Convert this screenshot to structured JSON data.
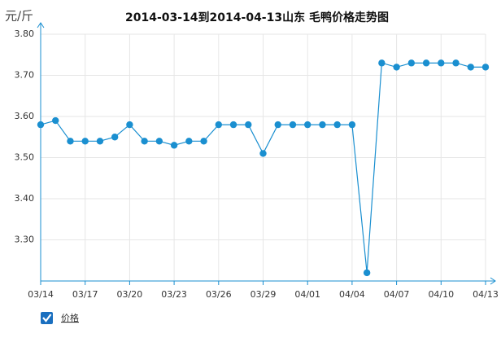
{
  "chart_data": {
    "type": "line",
    "title": "2014-03-14到2014-04-13山东  毛鸭价格走势图",
    "y_label": "元/斤",
    "categories": [
      "03/14",
      null,
      null,
      "03/17",
      null,
      null,
      "03/20",
      null,
      null,
      "03/23",
      null,
      null,
      "03/26",
      null,
      null,
      "03/29",
      null,
      null,
      "04/01",
      null,
      null,
      "04/04",
      null,
      null,
      "04/07",
      null,
      null,
      "04/10",
      null,
      null,
      "04/13"
    ],
    "series": [
      {
        "name": "价格",
        "color": "#1a8fd0",
        "values": [
          3.58,
          3.59,
          3.54,
          3.54,
          3.54,
          3.55,
          3.58,
          3.54,
          3.54,
          3.53,
          3.54,
          3.54,
          3.58,
          3.58,
          3.58,
          3.51,
          3.58,
          3.58,
          3.58,
          3.58,
          3.58,
          3.58,
          3.22,
          3.73,
          3.72,
          3.73,
          3.73,
          3.73,
          3.73,
          3.72,
          3.72
        ]
      }
    ],
    "ylim": [
      3.2,
      3.8
    ],
    "yticks": [
      {
        "value": 3.3,
        "label": "3.30"
      },
      {
        "value": 3.4,
        "label": "3.40"
      },
      {
        "value": 3.5,
        "label": "3.50"
      },
      {
        "value": 3.6,
        "label": "3.60"
      },
      {
        "value": 3.7,
        "label": "3.70"
      },
      {
        "value": 3.8,
        "label": "3.80"
      }
    ],
    "grid": true
  }
}
